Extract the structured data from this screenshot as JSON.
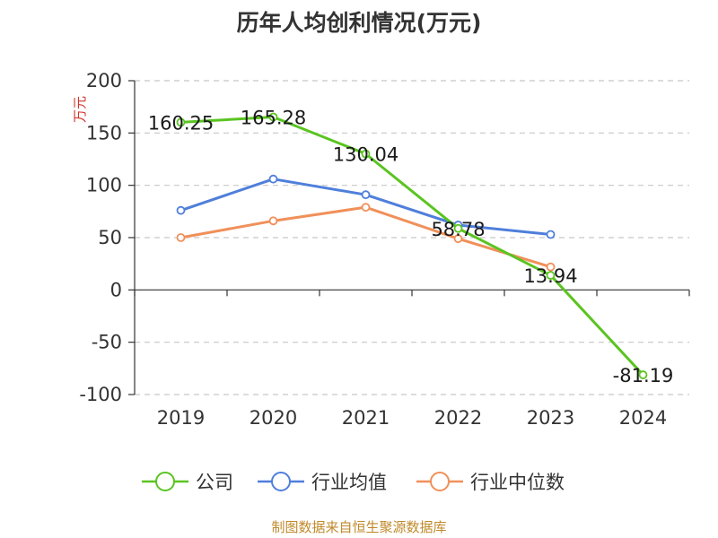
{
  "chart_data": {
    "type": "line",
    "title": "历年人均创利情况(万元)",
    "ylabel": "万元",
    "ylim": [
      -100,
      200
    ],
    "yticks": [
      200,
      150,
      100,
      50,
      0,
      -50,
      -100
    ],
    "categories": [
      "2019",
      "2020",
      "2021",
      "2022",
      "2023",
      "2024"
    ],
    "grid": true,
    "legend_position": "bottom",
    "series": [
      {
        "name": "公司",
        "color": "#5ac421",
        "values": [
          160.25,
          165.28,
          130.04,
          58.78,
          13.94,
          -81.19
        ],
        "labels": [
          "160.25",
          "165.28",
          "130.04",
          "58.78",
          "13.94",
          "-81.19"
        ]
      },
      {
        "name": "行业均值",
        "color": "#4f7fdb",
        "values": [
          76,
          106,
          91,
          62,
          53,
          null
        ]
      },
      {
        "name": "行业中位数",
        "color": "#f0905a",
        "values": [
          50,
          66,
          79,
          49,
          22,
          null
        ]
      }
    ]
  },
  "source": "制图数据来自恒生聚源数据库"
}
